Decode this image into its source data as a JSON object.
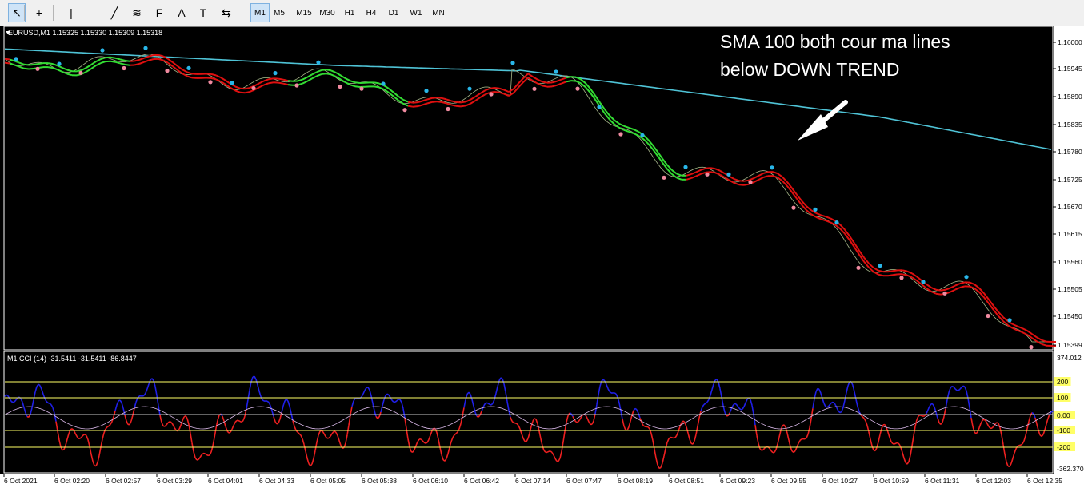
{
  "toolbar": {
    "tools": [
      {
        "name": "cursor-icon",
        "glyph": "↖"
      },
      {
        "name": "crosshair-icon",
        "glyph": "+"
      },
      {
        "name": "vertical-line-icon",
        "glyph": "|"
      },
      {
        "name": "horizontal-line-icon",
        "glyph": "—"
      },
      {
        "name": "trendline-icon",
        "glyph": "╱"
      },
      {
        "name": "equidistant-channel-icon",
        "glyph": "≋"
      },
      {
        "name": "fibonacci-icon",
        "glyph": "F"
      },
      {
        "name": "text-icon",
        "glyph": "A"
      },
      {
        "name": "text-label-icon",
        "glyph": "T"
      },
      {
        "name": "arrows-icon",
        "glyph": "⇆"
      }
    ],
    "timeframes": [
      "M1",
      "M5",
      "M15",
      "M30",
      "H1",
      "H4",
      "D1",
      "W1",
      "MN"
    ],
    "active_timeframe": "M1"
  },
  "main_chart": {
    "title": "EURUSD,M1  1.15325 1.15330 1.15309 1.15318",
    "annotation_line1": "SMA 100 both cour ma lines",
    "annotation_line2": "below DOWN TREND",
    "price_labels": [
      "1.16000",
      "1.15945",
      "1.15890",
      "1.15835",
      "1.15780",
      "1.15725",
      "1.15670",
      "1.15615",
      "1.15560",
      "1.15505",
      "1.15450",
      "1.15399"
    ]
  },
  "cci_panel": {
    "title": "M1 CCI (14) -31.5411 -31.5411 -86.8447",
    "level_labels": [
      "374.012",
      "200",
      "100",
      "0.00",
      "-100",
      "-200",
      "-362.370"
    ]
  },
  "time_axis": {
    "labels": [
      "6 Oct 2021",
      "6 Oct 02:20",
      "6 Oct 02:57",
      "6 Oct 03:29",
      "6 Oct 04:01",
      "6 Oct 04:33",
      "6 Oct 05:05",
      "6 Oct 05:38",
      "6 Oct 06:10",
      "6 Oct 06:42",
      "6 Oct 07:14",
      "6 Oct 07:47",
      "6 Oct 08:19",
      "6 Oct 08:51",
      "6 Oct 09:23",
      "6 Oct 09:55",
      "6 Oct 10:27",
      "6 Oct 10:59",
      "6 Oct 11:31",
      "6 Oct 12:03",
      "6 Oct 12:35"
    ]
  },
  "colors": {
    "background": "#000000",
    "sma100": "#4fc3d6",
    "ma_down": "#e01010",
    "ma_up": "#33dd33",
    "cci_above": "#2020e8",
    "cci_below": "#ee2020",
    "level_line": "#ffff66",
    "pivot_high": "#29b6e8",
    "pivot_low": "#f08aa0"
  }
}
